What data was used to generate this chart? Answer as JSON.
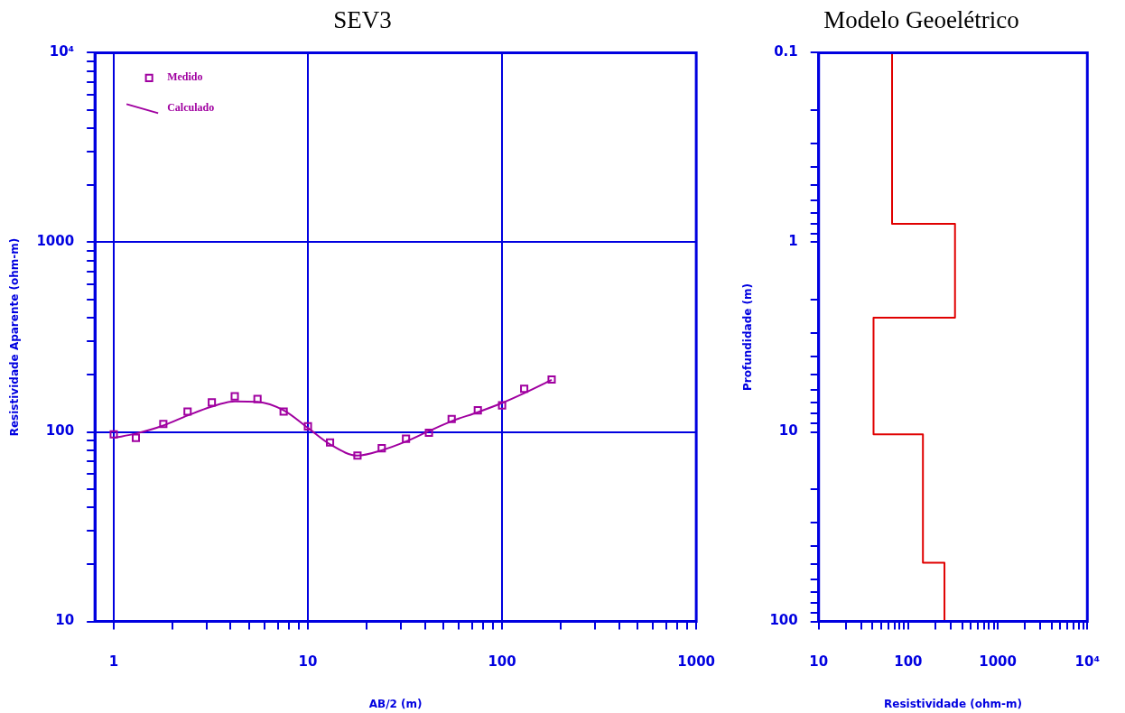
{
  "chart_data": [
    {
      "type": "scatter",
      "title": "SEV3",
      "xlabel": "AB/2 (m)",
      "ylabel": "Resistividade Aparente (ohm-m)",
      "log": "xy",
      "grid": true,
      "legend": "top left",
      "xlim": [
        0.8,
        1000
      ],
      "xticks": [
        1,
        {
          "value": 2,
          "label": null
        },
        {
          "value": 3,
          "label": null
        },
        {
          "value": 4,
          "label": null
        },
        {
          "value": 5,
          "label": null
        },
        {
          "value": 6,
          "label": null
        },
        {
          "value": 7,
          "label": null
        },
        {
          "value": 8,
          "label": null
        },
        {
          "value": 9,
          "label": null
        },
        10,
        {
          "value": 20,
          "label": null
        },
        {
          "value": 30,
          "label": null
        },
        {
          "value": 40,
          "label": null
        },
        {
          "value": 50,
          "label": null
        },
        {
          "value": 60,
          "label": null
        },
        {
          "value": 70,
          "label": null
        },
        {
          "value": 80,
          "label": null
        },
        {
          "value": 90,
          "label": null
        },
        100,
        {
          "value": 200,
          "label": null
        },
        {
          "value": 300,
          "label": null
        },
        {
          "value": 400,
          "label": null
        },
        {
          "value": 500,
          "label": null
        },
        {
          "value": 600,
          "label": null
        },
        {
          "value": 700,
          "label": null
        },
        {
          "value": 800,
          "label": null
        },
        {
          "value": 900,
          "label": null
        },
        1000
      ],
      "ylim": [
        10,
        10000
      ],
      "yticks": [
        10,
        {
          "value": 20,
          "label": null
        },
        {
          "value": 30,
          "label": null
        },
        {
          "value": 40,
          "label": null
        },
        {
          "value": 50,
          "label": null
        },
        {
          "value": 60,
          "label": null
        },
        {
          "value": 70,
          "label": null
        },
        {
          "value": 80,
          "label": null
        },
        {
          "value": 90,
          "label": null
        },
        100,
        {
          "value": 200,
          "label": null
        },
        {
          "value": 300,
          "label": null
        },
        {
          "value": 400,
          "label": null
        },
        {
          "value": 500,
          "label": null
        },
        {
          "value": 600,
          "label": null
        },
        {
          "value": 700,
          "label": null
        },
        {
          "value": 800,
          "label": null
        },
        {
          "value": 900,
          "label": null
        },
        1000,
        {
          "value": 2000,
          "label": null
        },
        {
          "value": 3000,
          "label": null
        },
        {
          "value": 4000,
          "label": null
        },
        {
          "value": 5000,
          "label": null
        },
        {
          "value": 6000,
          "label": null
        },
        {
          "value": 7000,
          "label": null
        },
        {
          "value": 8000,
          "label": null
        },
        {
          "value": 9000,
          "label": null
        },
        {
          "value": 10000,
          "label": "10⁴"
        }
      ],
      "series": [
        {
          "name": "Medido",
          "type": "scatter",
          "marker": "square",
          "color": "#a000a0",
          "x": [
            1,
            1.3,
            1.8,
            2.4,
            3.2,
            4.2,
            5.5,
            7.5,
            10,
            13,
            18,
            24,
            32,
            42,
            55,
            75,
            100,
            130,
            180
          ],
          "values": [
            97,
            93,
            110,
            128,
            143,
            154,
            149,
            128,
            107,
            88,
            75,
            82,
            92,
            99,
            117,
            130,
            138,
            169,
            189
          ]
        },
        {
          "name": "Calculado",
          "type": "line",
          "marker": "none",
          "color": "#a000a0",
          "x": [
            1,
            1.3,
            1.8,
            2.4,
            3.2,
            4.2,
            5.5,
            7.5,
            10,
            13,
            18,
            24,
            32,
            42,
            55,
            75,
            100,
            130,
            180
          ],
          "values": [
            93,
            98,
            108,
            122,
            136,
            145,
            144,
            130,
            105,
            86,
            75,
            80,
            89,
            101,
            114,
            127,
            142,
            160,
            188
          ]
        }
      ]
    },
    {
      "type": "line",
      "title": "Modelo Geoelétrico",
      "xlabel": "Resistividade (ohm-m)",
      "ylabel": "Profundidade (m)",
      "log": "xy",
      "grid": false,
      "xlim": [
        10,
        10000
      ],
      "xticks": [
        10,
        {
          "value": 20,
          "label": null
        },
        {
          "value": 30,
          "label": null
        },
        {
          "value": 40,
          "label": null
        },
        {
          "value": 50,
          "label": null
        },
        {
          "value": 60,
          "label": null
        },
        {
          "value": 70,
          "label": null
        },
        {
          "value": 80,
          "label": null
        },
        {
          "value": 90,
          "label": null
        },
        100,
        {
          "value": 200,
          "label": null
        },
        {
          "value": 300,
          "label": null
        },
        {
          "value": 400,
          "label": null
        },
        {
          "value": 500,
          "label": null
        },
        {
          "value": 600,
          "label": null
        },
        {
          "value": 700,
          "label": null
        },
        {
          "value": 800,
          "label": null
        },
        {
          "value": 900,
          "label": null
        },
        1000,
        {
          "value": 2000,
          "label": null
        },
        {
          "value": 3000,
          "label": null
        },
        {
          "value": 4000,
          "label": null
        },
        {
          "value": 5000,
          "label": null
        },
        {
          "value": 6000,
          "label": null
        },
        {
          "value": 7000,
          "label": null
        },
        {
          "value": 8000,
          "label": null
        },
        {
          "value": 9000,
          "label": null
        },
        {
          "value": 10000,
          "label": "10⁴"
        }
      ],
      "ylim": [
        100,
        0.1
      ],
      "yticks": [
        0.1,
        {
          "value": 0.2,
          "label": null
        },
        {
          "value": 0.3,
          "label": null
        },
        {
          "value": 0.4,
          "label": null
        },
        {
          "value": 0.5,
          "label": null
        },
        {
          "value": 0.6,
          "label": null
        },
        {
          "value": 0.7,
          "label": null
        },
        {
          "value": 0.8,
          "label": null
        },
        {
          "value": 0.9,
          "label": null
        },
        1,
        {
          "value": 2,
          "label": null
        },
        {
          "value": 3,
          "label": null
        },
        {
          "value": 4,
          "label": null
        },
        {
          "value": 5,
          "label": null
        },
        {
          "value": 6,
          "label": null
        },
        {
          "value": 7,
          "label": null
        },
        {
          "value": 8,
          "label": null
        },
        {
          "value": 9,
          "label": null
        },
        10,
        {
          "value": 20,
          "label": null
        },
        {
          "value": 30,
          "label": null
        },
        {
          "value": 40,
          "label": null
        },
        {
          "value": 50,
          "label": null
        },
        {
          "value": 60,
          "label": null
        },
        {
          "value": 70,
          "label": null
        },
        {
          "value": 80,
          "label": null
        },
        {
          "value": 90,
          "label": null
        },
        100
      ],
      "series": [
        {
          "color": "#e00000",
          "marker": "none",
          "x": [
            66,
            66,
            333,
            333,
            41,
            41,
            146,
            146,
            254,
            254
          ],
          "values": [
            0.1,
            0.8,
            0.8,
            2.5,
            2.5,
            10.3,
            10.3,
            49,
            49,
            100
          ]
        }
      ]
    }
  ]
}
